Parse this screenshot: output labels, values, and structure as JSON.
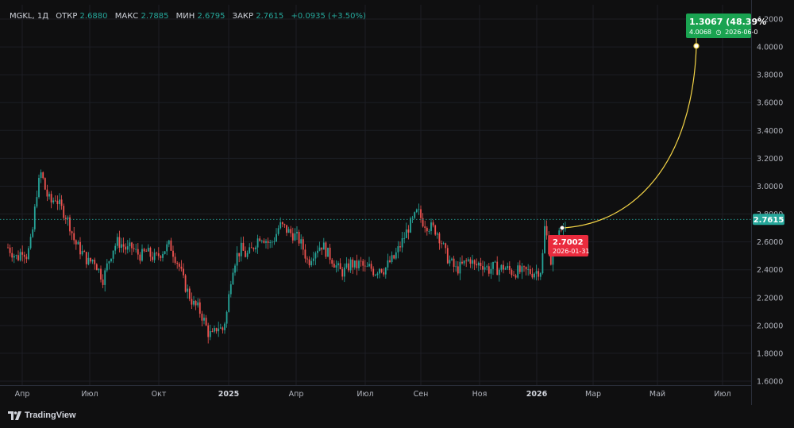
{
  "legend": {
    "ticker": "MGKL, 1Д",
    "open_label": "ОТКР",
    "open_value": "2.6880",
    "high_label": "МАКС",
    "high_value": "2.7885",
    "low_label": "МИН",
    "low_value": "2.6795",
    "close_label": "ЗАКР",
    "close_value": "2.7615",
    "change": "+0.0935 (+3.50%)"
  },
  "price_labels": {
    "current": "2.7615",
    "start_value": "2.7002",
    "start_date": "2026-01-31",
    "target_change": "1.3067 (48.39%",
    "target_value": "4.0068",
    "target_date": "2026-06-0"
  },
  "branding": {
    "name": "TradingView"
  },
  "colors": {
    "up": "#26a69a",
    "down": "#ef5350",
    "curve": "#f5d547",
    "target_badge": "#1aa351",
    "start_badge": "#ea2b3d",
    "current_badge": "#26a69a"
  },
  "chart_data": {
    "type": "candlestick",
    "symbol": "MGKL",
    "interval": "1Д",
    "y_range": [
      1.6,
      4.2
    ],
    "y_ticks": [
      "4.2000",
      "4.0000",
      "3.8000",
      "3.6000",
      "3.4000",
      "3.2000",
      "3.0000",
      "2.8000",
      "2.6000",
      "2.4000",
      "2.2000",
      "2.0000",
      "1.8000",
      "1.6000"
    ],
    "x_ticks": [
      {
        "label": "Апр",
        "bold": false
      },
      {
        "label": "Июл",
        "bold": false
      },
      {
        "label": "Окт",
        "bold": false
      },
      {
        "label": "2025",
        "bold": true
      },
      {
        "label": "Апр",
        "bold": false
      },
      {
        "label": "Июл",
        "bold": false
      },
      {
        "label": "Сен",
        "bold": false
      },
      {
        "label": "Ноя",
        "bold": false
      },
      {
        "label": "2026",
        "bold": true
      },
      {
        "label": "Мар",
        "bold": false
      },
      {
        "label": "Май",
        "bold": false
      },
      {
        "label": "Июл",
        "bold": false
      }
    ],
    "close_path": [
      [
        0,
        2.56
      ],
      [
        6,
        2.52
      ],
      [
        12,
        2.48
      ],
      [
        18,
        2.55
      ],
      [
        24,
        2.5
      ],
      [
        30,
        2.62
      ],
      [
        36,
        2.95
      ],
      [
        42,
        3.1
      ],
      [
        48,
        2.95
      ],
      [
        54,
        2.88
      ],
      [
        60,
        2.92
      ],
      [
        66,
        2.85
      ],
      [
        72,
        2.8
      ],
      [
        78,
        2.72
      ],
      [
        84,
        2.6
      ],
      [
        90,
        2.55
      ],
      [
        96,
        2.5
      ],
      [
        102,
        2.45
      ],
      [
        108,
        2.48
      ],
      [
        114,
        2.4
      ],
      [
        120,
        2.33
      ],
      [
        126,
        2.45
      ],
      [
        132,
        2.55
      ],
      [
        138,
        2.6
      ],
      [
        144,
        2.58
      ],
      [
        150,
        2.54
      ],
      [
        156,
        2.56
      ],
      [
        162,
        2.52
      ],
      [
        168,
        2.5
      ],
      [
        174,
        2.53
      ],
      [
        180,
        2.5
      ],
      [
        186,
        2.48
      ],
      [
        192,
        2.52
      ],
      [
        198,
        2.55
      ],
      [
        204,
        2.58
      ],
      [
        210,
        2.5
      ],
      [
        216,
        2.42
      ],
      [
        222,
        2.3
      ],
      [
        228,
        2.22
      ],
      [
        234,
        2.15
      ],
      [
        240,
        2.12
      ],
      [
        246,
        2.05
      ],
      [
        252,
        1.95
      ],
      [
        258,
        1.92
      ],
      [
        264,
        2.0
      ],
      [
        270,
        1.96
      ],
      [
        276,
        2.1
      ],
      [
        282,
        2.4
      ],
      [
        288,
        2.5
      ],
      [
        294,
        2.55
      ],
      [
        300,
        2.5
      ],
      [
        306,
        2.53
      ],
      [
        312,
        2.6
      ],
      [
        318,
        2.65
      ],
      [
        324,
        2.62
      ],
      [
        330,
        2.58
      ],
      [
        336,
        2.63
      ],
      [
        342,
        2.72
      ],
      [
        348,
        2.7
      ],
      [
        354,
        2.67
      ],
      [
        360,
        2.65
      ],
      [
        366,
        2.62
      ],
      [
        372,
        2.55
      ],
      [
        378,
        2.45
      ],
      [
        384,
        2.52
      ],
      [
        390,
        2.56
      ],
      [
        396,
        2.58
      ],
      [
        402,
        2.52
      ],
      [
        408,
        2.48
      ],
      [
        414,
        2.42
      ],
      [
        420,
        2.38
      ],
      [
        426,
        2.4
      ],
      [
        432,
        2.45
      ],
      [
        438,
        2.42
      ],
      [
        444,
        2.45
      ],
      [
        450,
        2.4
      ],
      [
        456,
        2.42
      ],
      [
        462,
        2.38
      ],
      [
        468,
        2.42
      ],
      [
        474,
        2.4
      ],
      [
        480,
        2.45
      ],
      [
        486,
        2.48
      ],
      [
        492,
        2.55
      ],
      [
        498,
        2.62
      ],
      [
        504,
        2.7
      ],
      [
        510,
        2.75
      ],
      [
        516,
        2.82
      ],
      [
        522,
        2.75
      ],
      [
        528,
        2.72
      ],
      [
        534,
        2.7
      ],
      [
        540,
        2.68
      ],
      [
        546,
        2.6
      ],
      [
        552,
        2.5
      ],
      [
        558,
        2.45
      ],
      [
        564,
        2.4
      ],
      [
        570,
        2.42
      ],
      [
        576,
        2.45
      ],
      [
        582,
        2.48
      ],
      [
        588,
        2.42
      ],
      [
        594,
        2.45
      ],
      [
        600,
        2.43
      ],
      [
        606,
        2.4
      ],
      [
        612,
        2.42
      ],
      [
        618,
        2.4
      ],
      [
        624,
        2.42
      ],
      [
        630,
        2.4
      ],
      [
        636,
        2.38
      ],
      [
        642,
        2.39
      ],
      [
        648,
        2.38
      ],
      [
        654,
        2.39
      ],
      [
        660,
        2.38
      ],
      [
        666,
        2.39
      ],
      [
        672,
        2.4
      ],
      [
        676,
        2.7
      ],
      [
        680,
        2.6
      ],
      [
        684,
        2.45
      ],
      [
        688,
        2.55
      ],
      [
        692,
        2.62
      ],
      [
        696,
        2.68
      ],
      [
        700,
        2.7
      ],
      [
        703,
        2.76
      ]
    ]
  }
}
